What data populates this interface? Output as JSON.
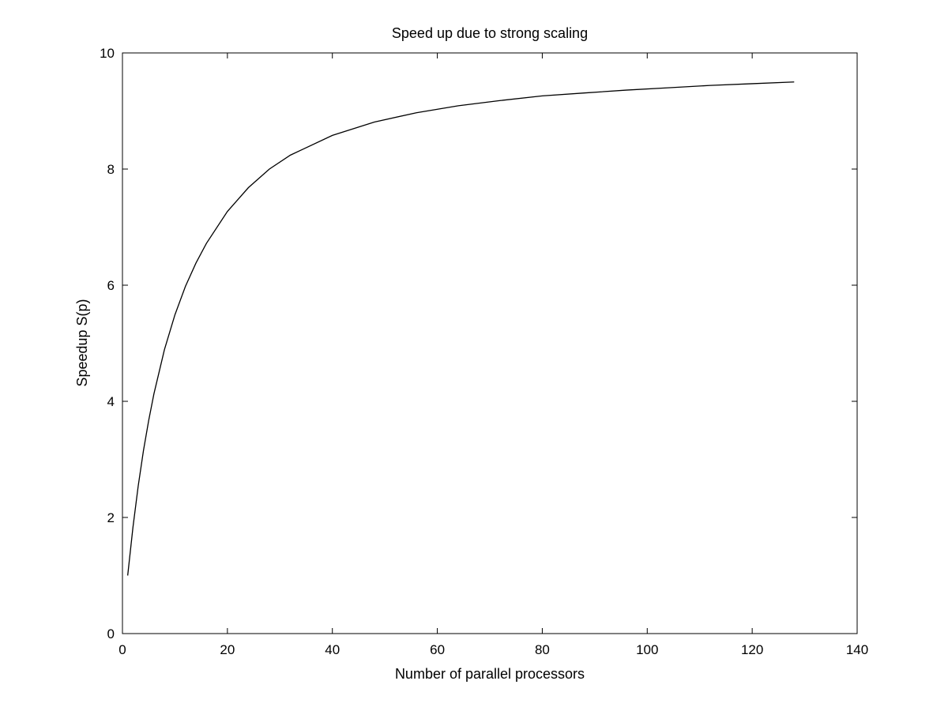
{
  "chart_data": {
    "type": "line",
    "title": "Speed up due to strong scaling",
    "xlabel": "Number of parallel processors",
    "ylabel": "Speedup S(p)",
    "xlim": [
      0,
      140
    ],
    "ylim": [
      0,
      10
    ],
    "xticks": [
      "0",
      "20",
      "40",
      "60",
      "80",
      "100",
      "120",
      "140"
    ],
    "yticks": [
      "0",
      "2",
      "4",
      "6",
      "8",
      "10"
    ],
    "grid": false,
    "legend": false,
    "line_color": "#000000",
    "series": [
      {
        "x": [
          1,
          2,
          3,
          4,
          5,
          6,
          8,
          10,
          12,
          14,
          16,
          20,
          24,
          28,
          32,
          40,
          48,
          56,
          64,
          72,
          80,
          88,
          96,
          104,
          112,
          120,
          128
        ],
        "values": [
          1.0,
          1.83,
          2.54,
          3.15,
          3.67,
          4.13,
          4.89,
          5.49,
          5.98,
          6.38,
          6.72,
          7.27,
          7.68,
          8.0,
          8.24,
          8.58,
          8.81,
          8.97,
          9.09,
          9.18,
          9.26,
          9.31,
          9.36,
          9.4,
          9.44,
          9.47,
          9.5
        ]
      }
    ]
  }
}
